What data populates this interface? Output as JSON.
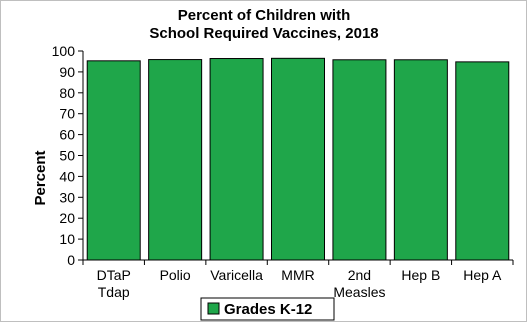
{
  "chart_data": {
    "type": "bar",
    "title": [
      "Percent of Children with",
      "School Required Vaccines, 2018"
    ],
    "ylabel": "Percent",
    "xlabel": "",
    "ylim": [
      0,
      100
    ],
    "yticks": [
      0,
      10,
      20,
      30,
      40,
      50,
      60,
      70,
      80,
      90,
      100
    ],
    "grid": false,
    "legend_position": "bottom",
    "categories": [
      [
        "DTaP",
        "Tdap"
      ],
      [
        "Polio"
      ],
      [
        "Varicella"
      ],
      [
        "MMR"
      ],
      [
        "2nd",
        "Measles"
      ],
      [
        "Hep B"
      ],
      [
        "Hep A"
      ]
    ],
    "series": [
      {
        "name": "Grades K-12",
        "color": "#1fa64a",
        "values": [
          95.3,
          95.9,
          96.4,
          96.5,
          95.8,
          95.8,
          94.8
        ]
      }
    ]
  }
}
